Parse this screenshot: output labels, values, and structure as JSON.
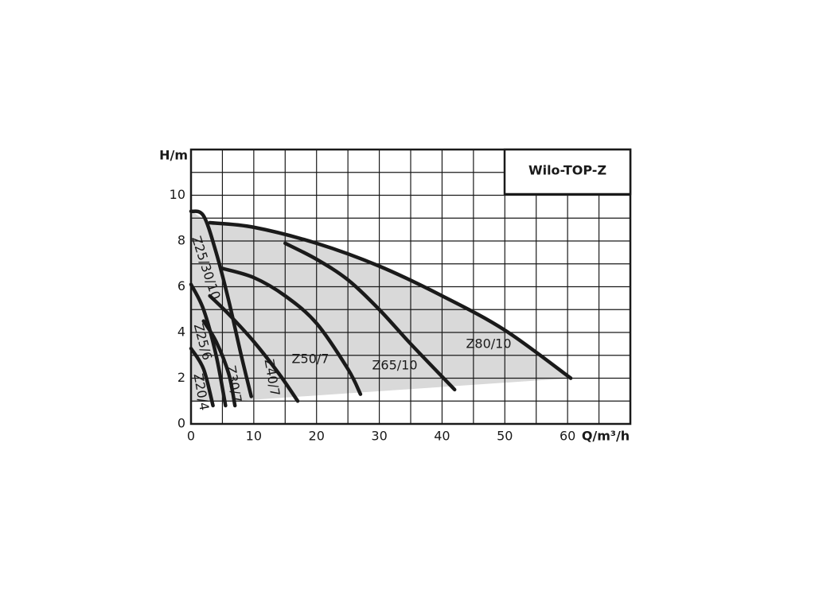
{
  "chart_data": {
    "type": "line",
    "title": "Wilo-TOP-Z",
    "x_label": "Q/m³/h",
    "y_label": "H/m",
    "xlim": [
      0,
      70
    ],
    "ylim": [
      0,
      12
    ],
    "xticks": [
      0,
      10,
      20,
      30,
      40,
      50,
      60
    ],
    "yticks": [
      0,
      2,
      4,
      6,
      8,
      10
    ],
    "grid": true,
    "minor_grid": true,
    "series": [
      {
        "name": "Z80/10",
        "color": "#1a1a1a",
        "x": [
          3,
          10,
          20,
          30,
          40,
          50,
          60.5
        ],
        "values": [
          8.8,
          8.6,
          7.9,
          6.9,
          5.6,
          4.1,
          2.0
        ]
      },
      {
        "name": "Z65/10",
        "color": "#1a1a1a",
        "x": [
          15,
          20,
          25,
          30,
          35,
          42
        ],
        "values": [
          7.9,
          7.2,
          6.3,
          5.0,
          3.5,
          1.5
        ]
      },
      {
        "name": "Z50/7",
        "color": "#1a1a1a",
        "x": [
          5,
          10,
          15,
          20,
          25,
          27
        ],
        "values": [
          6.8,
          6.4,
          5.6,
          4.4,
          2.4,
          1.3
        ]
      },
      {
        "name": "Z40/7",
        "color": "#1a1a1a",
        "x": [
          3,
          6,
          10,
          14,
          17
        ],
        "values": [
          5.6,
          4.8,
          3.6,
          2.2,
          1.0
        ]
      },
      {
        "name": "Z30/7",
        "color": "#1a1a1a",
        "x": [
          2,
          4,
          6,
          7
        ],
        "values": [
          4.5,
          3.6,
          2.2,
          0.8
        ]
      },
      {
        "name": "Z25/30/10",
        "color": "#1a1a1a",
        "x": [
          0,
          2,
          4,
          6,
          8,
          9.6
        ],
        "values": [
          9.3,
          9.1,
          7.5,
          5.4,
          3.0,
          1.2
        ]
      },
      {
        "name": "Z25/6",
        "color": "#1a1a1a",
        "x": [
          0,
          2,
          4,
          5.5
        ],
        "values": [
          6.1,
          5.0,
          3.0,
          0.8
        ]
      },
      {
        "name": "Z20/4",
        "color": "#1a1a1a",
        "x": [
          0,
          2,
          3.5
        ],
        "values": [
          3.3,
          2.4,
          0.8
        ]
      }
    ]
  }
}
